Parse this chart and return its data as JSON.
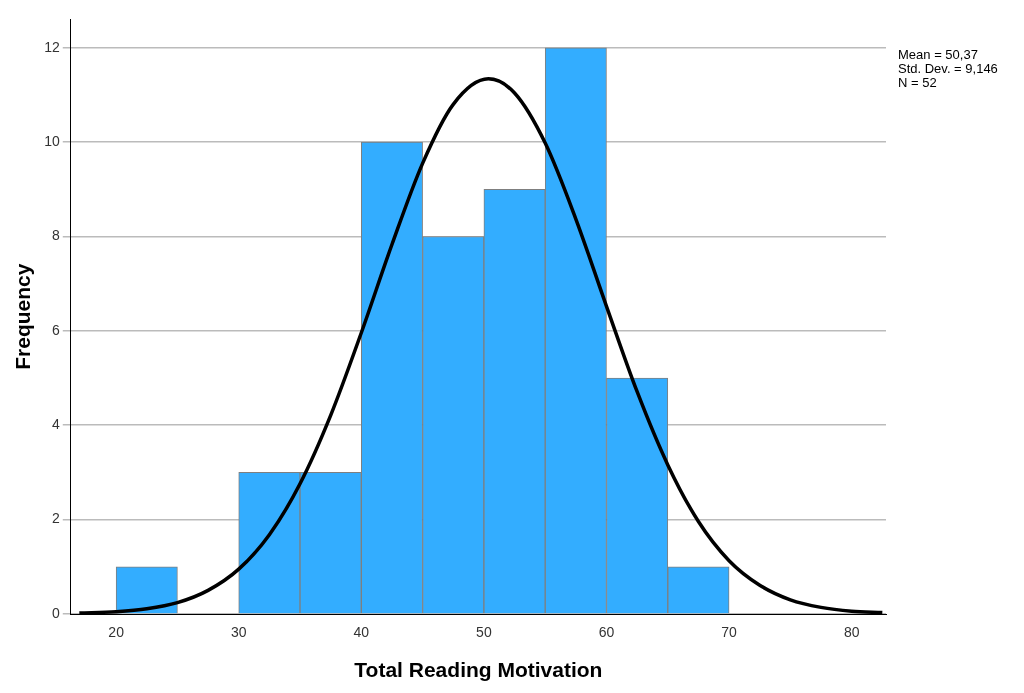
{
  "chart_data": {
    "type": "histogram",
    "xlabel": "Total Reading Motivation",
    "ylabel": "Frequency",
    "bins": [
      20,
      25,
      30,
      35,
      40,
      45,
      50,
      55,
      60,
      65,
      70
    ],
    "values": [
      1,
      0,
      3,
      3,
      10,
      8,
      9,
      12,
      5,
      1
    ],
    "color": "#33adff",
    "series": [
      {
        "type": "line",
        "color": "#000000",
        "marker": "none",
        "x": [
          17,
          20,
          22.5,
          25,
          27.5,
          30,
          32.5,
          35,
          37.5,
          40,
          42.5,
          45,
          47.5,
          50.37,
          52.5,
          55,
          57.5,
          60,
          62.5,
          65,
          67.5,
          70,
          72.5,
          75,
          77.5,
          80,
          82.5
        ],
        "values": [
          0.02,
          0.05,
          0.11,
          0.24,
          0.5,
          0.95,
          1.68,
          2.76,
          4.21,
          5.96,
          7.83,
          9.55,
          10.8,
          11.34,
          11.04,
          9.98,
          8.37,
          6.52,
          4.71,
          3.16,
          1.96,
          1.13,
          0.61,
          0.3,
          0.14,
          0.06,
          0.03
        ]
      }
    ],
    "xlim": [
      16.3,
      82.8
    ],
    "xticks": [
      20,
      30,
      40,
      50,
      60,
      70,
      80
    ],
    "ylim": [
      0,
      12.6
    ],
    "yticks": [
      0,
      2,
      4,
      6,
      8,
      10,
      12
    ],
    "grid": "y",
    "legend": false,
    "annotations": [
      "Mean = 50,37",
      "Std. Dev. = 9,146",
      "N = 52"
    ]
  }
}
